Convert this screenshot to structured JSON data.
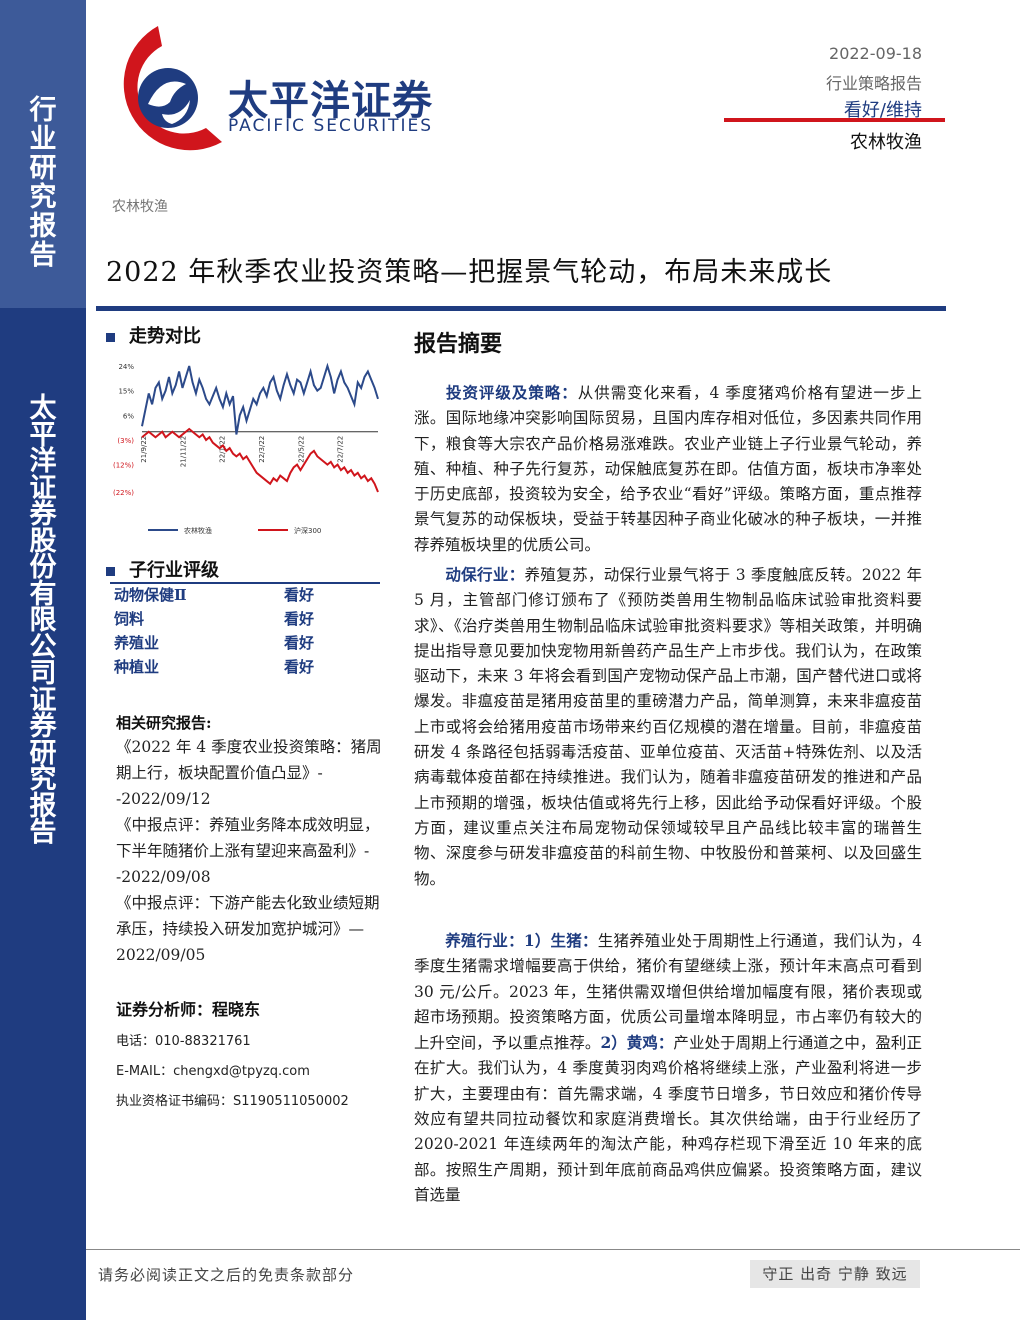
{
  "sidebar": {
    "top_label": "行业研究报告",
    "bottom_label": "太平洋证券股份有限公司证券研究报告"
  },
  "brand": {
    "name_cn": "太平洋证券",
    "name_en": "PACIFIC SECURITIES",
    "colors": {
      "navy": "#1f3c80",
      "red": "#d0151c"
    }
  },
  "header": {
    "date": "2022-09-18",
    "report_type": "行业策略报告",
    "rating": "看好/维持",
    "sector": "农林牧渔"
  },
  "breadcrumb": "农林牧渔",
  "title": "2022 年秋季农业投资策略—把握景气轮动，布局未来成长",
  "trend": {
    "heading": "走势对比",
    "chart_data": {
      "type": "line",
      "y_ticks": [
        "24%",
        "15%",
        "6%",
        "(3%)",
        "(12%)",
        "(22%)"
      ],
      "x_ticks": [
        "21/9/22",
        "21/11/22",
        "22/1/22",
        "22/3/22",
        "22/5/22",
        "22/7/22"
      ],
      "series": [
        {
          "name": "农林牧渔",
          "color": "#2c4a8a",
          "values": [
            2,
            8,
            14,
            10,
            16,
            18,
            12,
            15,
            20,
            14,
            17,
            22,
            16,
            20,
            24,
            18,
            14,
            19,
            16,
            12,
            10,
            13,
            16,
            12,
            9,
            14,
            10,
            13,
            -1,
            6,
            9,
            4,
            8,
            12,
            10,
            14,
            16,
            13,
            18,
            20,
            15,
            12,
            17,
            21,
            17,
            14,
            19,
            18,
            14,
            18,
            22,
            17,
            15,
            16,
            20,
            24,
            20,
            14,
            19,
            22,
            18,
            16,
            13,
            10,
            18,
            16,
            20,
            22,
            19,
            16,
            12
          ]
        },
        {
          "name": "沪深300",
          "color": "#d0151c",
          "values": [
            -2,
            -1,
            0,
            -1,
            -2,
            -1,
            0,
            -2,
            -1,
            0,
            -1,
            -2,
            -1,
            0,
            1,
            0,
            -1,
            -2,
            -1,
            -3,
            -2,
            -4,
            -5,
            -6,
            -5,
            -7,
            -6,
            -8,
            -9,
            -8,
            -10,
            -9,
            -11,
            -13,
            -15,
            -16,
            -17,
            -18,
            -19,
            -17,
            -18,
            -16,
            -17,
            -18,
            -15,
            -13,
            -12,
            -14,
            -12,
            -10,
            -8,
            -7,
            -9,
            -10,
            -11,
            -12,
            -11,
            -13,
            -12,
            -14,
            -13,
            -15,
            -14,
            -16,
            -15,
            -17,
            -16,
            -18,
            -17,
            -19,
            -22
          ]
        }
      ]
    }
  },
  "sub_ratings": {
    "heading": "子行业评级",
    "rows": [
      {
        "name": "动物保健Ⅱ",
        "rating": "看好"
      },
      {
        "name": "饲料",
        "rating": "看好"
      },
      {
        "name": "养殖业",
        "rating": "看好"
      },
      {
        "name": "种植业",
        "rating": "看好"
      }
    ]
  },
  "related": {
    "title": "相关研究报告:",
    "items": [
      "《2022 年 4 季度农业投资策略：猪周期上行，板块配置价值凸显》--2022/09/12",
      "《中报点评：养殖业务降本成效明显，下半年随猪价上涨有望迎来高盈利》--2022/09/08",
      "《中报点评：下游产能去化致业绩短期承压，持续投入研发加宽护城河》—2022/09/05"
    ]
  },
  "analyst": {
    "title": "证券分析师：程晓东",
    "phone": "电话：010-88321761",
    "email": "E-MAIL：chengxd@tpyzq.com",
    "license": "执业资格证书编码：S1190511050002"
  },
  "summary": {
    "title": "报告摘要",
    "p1_label": "投资评级及策略：",
    "p1": "从供需变化来看，4 季度猪鸡价格有望进一步上涨。国际地缘冲突影响国际贸易，且国内库存相对低位，多因素共同作用下，粮食等大宗农产品价格易涨难跌。农业产业链上子行业景气轮动，养殖、种植、种子先行复苏，动保触底复苏在即。估值方面，板块市净率处于历史底部，投资较为安全，给予农业“看好”评级。策略方面，重点推荐景气复苏的动保板块，受益于转基因种子商业化破冰的种子板块，一并推荐养殖板块里的优质公司。",
    "p2_label": "动保行业：",
    "p2": "养殖复苏，动保行业景气将于 3 季度触底反转。2022 年 5 月，主管部门修订颁布了《预防类兽用生物制品临床试验审批资料要求》、《治疗类兽用生物制品临床试验审批资料要求》等相关政策，并明确提出指导意见要加快宠物用新兽药产品生产上市步伐。我们认为，在政策驱动下，未来 3 年将会看到国产宠物动保产品上市潮，国产替代进口或将爆发。非瘟疫苗是猪用疫苗里的重磅潜力产品，简单测算，未来非瘟疫苗上市或将会给猪用疫苗市场带来约百亿规模的潜在增量。目前，非瘟疫苗研发 4 条路径包括弱毒活疫苗、亚单位疫苗、灭活苗+特殊佐剂、以及活病毒载体疫苗都在持续推进。我们认为，随着非瘟疫苗研发的推进和产品上市预期的增强，板块估值或将先行上移，因此给予动保看好评级。个股方面，建议重点关注布局宠物动保领域较早且产品线比较丰富的瑞普生物、深度参与研发非瘟疫苗的科前生物、中牧股份和普莱柯、以及回盛生物。",
    "p3_label": "养殖行业：1）生猪：",
    "p3": "生猪养殖业处于周期性上行通道，我们认为，4 季度生猪需求增幅要高于供给，猪价有望继续上涨，预计年末高点可看到 30 元/公斤。2023 年，生猪供需双增但供给增加幅度有限，猪价表现或超市场预期。投资策略方面，优质公司量增本降明显，市占率仍有较大的上升空间，予以重点推荐。",
    "p3_label2": "2）黄鸡：",
    "p3b": "产业处于周期上行通道之中，盈利正在扩大。我们认为，4 季度黄羽肉鸡价格将继续上涨，产业盈利将进一步扩大，主要理由有：首先需求端，4 季度节日增多，节日效应和猪价传导效应有望共同拉动餐饮和家庭消费增长。其次供给端，由于行业经历了 2020-2021 年连续两年的淘汰产能，种鸡存栏现下滑至近 10 年来的底部。按照生产周期，预计到年底前商品鸡供应偏紧。投资策略方面，建议首选量"
  },
  "footer": {
    "disclaimer": "请务必阅读正文之后的免责条款部分",
    "motto": "守正 出奇 宁静 致远"
  }
}
